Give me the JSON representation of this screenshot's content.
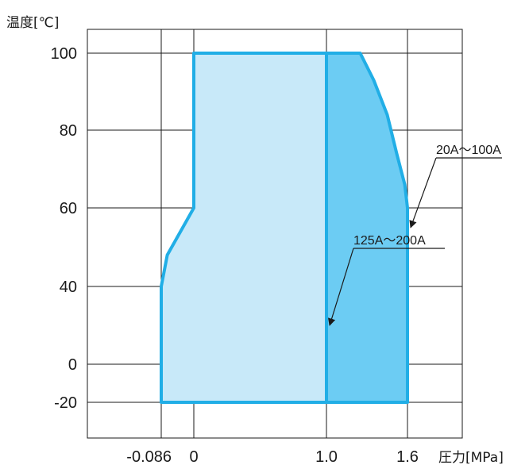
{
  "chart_data": {
    "type": "area",
    "ylabel": "温度[℃]",
    "xlabel": "圧力[MPa]",
    "x_ticks": [
      {
        "value": -0.086,
        "label": "-0.086"
      },
      {
        "value": 0,
        "label": "0"
      },
      {
        "value": 1.0,
        "label": "1.0"
      },
      {
        "value": 1.6,
        "label": "1.6"
      }
    ],
    "y_ticks": [
      {
        "value": -20,
        "label": "-20"
      },
      {
        "value": 0,
        "label": "0"
      },
      {
        "value": 40,
        "label": "40"
      },
      {
        "value": 60,
        "label": "60"
      },
      {
        "value": 80,
        "label": "80"
      },
      {
        "value": 100,
        "label": "100"
      }
    ],
    "xlim": [
      -0.2,
      2.0
    ],
    "grid": true,
    "series": [
      {
        "label": "125A～200A",
        "color": "#c8e9f9",
        "points": [
          [
            -0.086,
            -20
          ],
          [
            -0.086,
            40
          ],
          [
            -0.07,
            48
          ],
          [
            0,
            60
          ],
          [
            0,
            100
          ],
          [
            1.0,
            100
          ],
          [
            1.0,
            -20
          ]
        ]
      },
      {
        "label": "20A～100A",
        "color": "#6cccf3",
        "points": [
          [
            1.0,
            -20
          ],
          [
            1.0,
            100
          ],
          [
            1.25,
            100
          ],
          [
            1.35,
            93
          ],
          [
            1.45,
            84
          ],
          [
            1.52,
            74
          ],
          [
            1.58,
            66
          ],
          [
            1.6,
            60
          ],
          [
            1.6,
            -20
          ]
        ]
      }
    ],
    "outline_color": "#21aee6",
    "annotations": [
      {
        "text": "20A～100A",
        "target": [
          1.6,
          55
        ]
      },
      {
        "text": "125A～200A",
        "target": [
          1.0,
          20
        ]
      }
    ]
  }
}
